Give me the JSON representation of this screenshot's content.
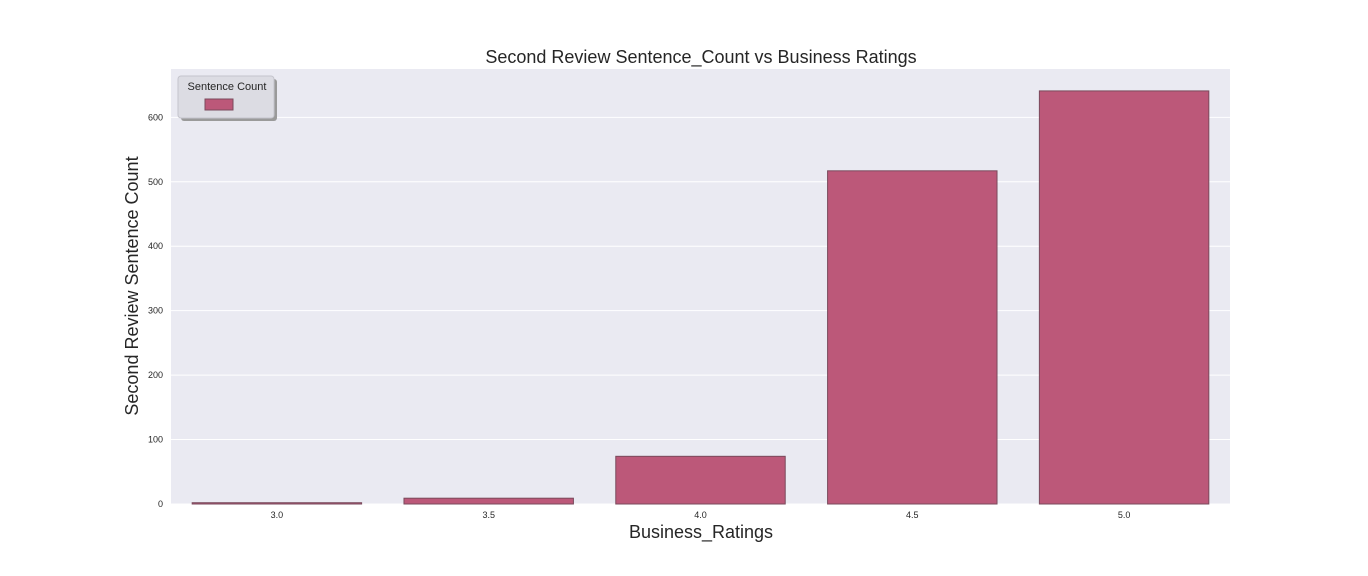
{
  "chart_data": {
    "type": "bar",
    "title": "Second Review Sentence_Count vs Business Ratings",
    "xlabel": "Business_Ratings",
    "ylabel": "Second Review Sentence Count",
    "categories": [
      "3.0",
      "3.5",
      "4.0",
      "4.5",
      "5.0"
    ],
    "series": [
      {
        "name": "Sentence Count",
        "values": [
          2,
          9,
          74,
          517,
          641
        ]
      }
    ],
    "ylim": [
      0,
      675
    ],
    "yticks": [
      0,
      100,
      200,
      300,
      400,
      500,
      600
    ],
    "grid": true,
    "legend_position": "top-left",
    "colors": {
      "bar_fill": "#bc5879",
      "bar_edge": "#7a4a5c",
      "plot_bg": "#eaeaf2",
      "grid": "#ffffff"
    }
  }
}
